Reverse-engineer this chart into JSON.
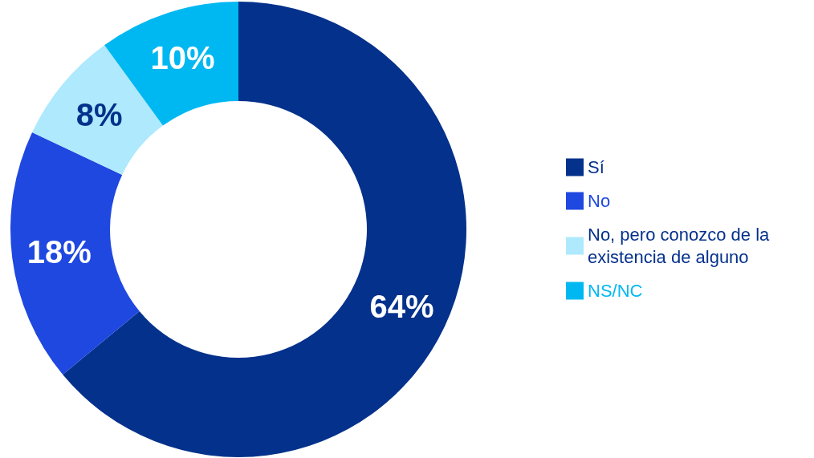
{
  "chart_data": {
    "type": "donut",
    "categories": [
      "Sí",
      "No",
      "No, pero conozco de la existencia de alguno",
      "NS/NC"
    ],
    "values": [
      64,
      18,
      8,
      10
    ],
    "value_labels": [
      "64%",
      "18%",
      "8%",
      "10%"
    ],
    "colors": [
      "#04318b",
      "#1f48e0",
      "#aee9fd",
      "#00b8f1"
    ],
    "legend": "right"
  }
}
